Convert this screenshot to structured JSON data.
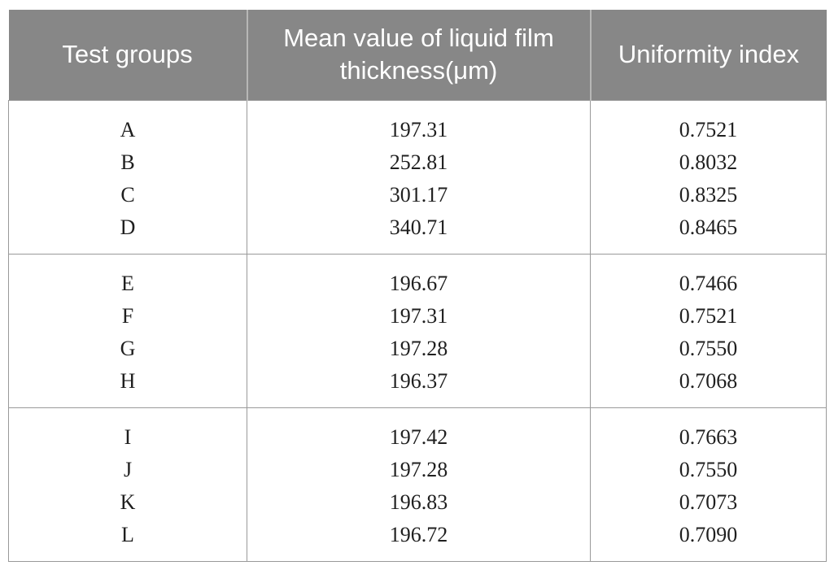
{
  "table": {
    "headers": [
      "Test groups",
      "Mean value of liquid film thickness(μm)",
      "Uniformity index"
    ],
    "groups": [
      {
        "rows": [
          {
            "label": "A",
            "thickness": "197.31",
            "uniformity": "0.7521"
          },
          {
            "label": "B",
            "thickness": "252.81",
            "uniformity": "0.8032"
          },
          {
            "label": "C",
            "thickness": "301.17",
            "uniformity": "0.8325"
          },
          {
            "label": "D",
            "thickness": "340.71",
            "uniformity": "0.8465"
          }
        ]
      },
      {
        "rows": [
          {
            "label": "E",
            "thickness": "196.67",
            "uniformity": "0.7466"
          },
          {
            "label": "F",
            "thickness": "197.31",
            "uniformity": "0.7521"
          },
          {
            "label": "G",
            "thickness": "197.28",
            "uniformity": "0.7550"
          },
          {
            "label": "H",
            "thickness": "196.37",
            "uniformity": "0.7068"
          }
        ]
      },
      {
        "rows": [
          {
            "label": "I",
            "thickness": "197.42",
            "uniformity": "0.7663"
          },
          {
            "label": "J",
            "thickness": "197.28",
            "uniformity": "0.7550"
          },
          {
            "label": "K",
            "thickness": "196.83",
            "uniformity": "0.7073"
          },
          {
            "label": "L",
            "thickness": "196.72",
            "uniformity": "0.7090"
          }
        ]
      }
    ]
  },
  "colors": {
    "header_bg": "#878787",
    "header_text": "#ffffff",
    "body_text": "#1f1f1f",
    "border": "#9a9a9a"
  }
}
